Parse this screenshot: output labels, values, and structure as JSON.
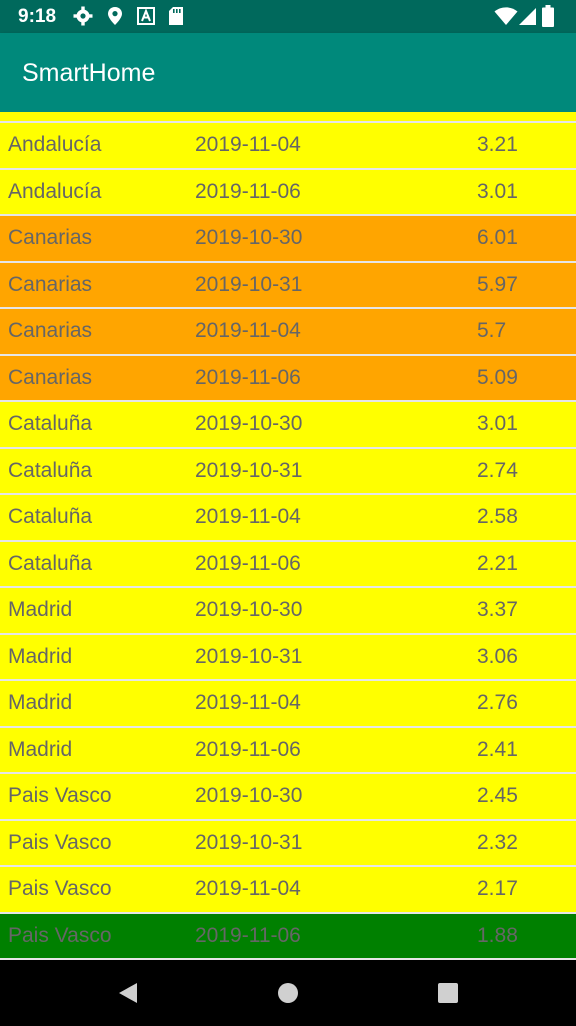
{
  "status": {
    "time": "9:18"
  },
  "app": {
    "title": "SmartHome"
  },
  "rows": [
    {
      "region": "Andalucía",
      "date": "2019-11-04",
      "value": "3.21",
      "color": "yellow"
    },
    {
      "region": "Andalucía",
      "date": "2019-11-06",
      "value": "3.01",
      "color": "yellow"
    },
    {
      "region": "Canarias",
      "date": "2019-10-30",
      "value": "6.01",
      "color": "orange"
    },
    {
      "region": "Canarias",
      "date": "2019-10-31",
      "value": "5.97",
      "color": "orange"
    },
    {
      "region": "Canarias",
      "date": "2019-11-04",
      "value": "5.7",
      "color": "orange"
    },
    {
      "region": "Canarias",
      "date": "2019-11-06",
      "value": "5.09",
      "color": "orange"
    },
    {
      "region": "Cataluña",
      "date": "2019-10-30",
      "value": "3.01",
      "color": "yellow"
    },
    {
      "region": "Cataluña",
      "date": "2019-10-31",
      "value": "2.74",
      "color": "yellow"
    },
    {
      "region": "Cataluña",
      "date": "2019-11-04",
      "value": "2.58",
      "color": "yellow"
    },
    {
      "region": "Cataluña",
      "date": "2019-11-06",
      "value": "2.21",
      "color": "yellow"
    },
    {
      "region": "Madrid",
      "date": "2019-10-30",
      "value": "3.37",
      "color": "yellow"
    },
    {
      "region": "Madrid",
      "date": "2019-10-31",
      "value": "3.06",
      "color": "yellow"
    },
    {
      "region": "Madrid",
      "date": "2019-11-04",
      "value": "2.76",
      "color": "yellow"
    },
    {
      "region": "Madrid",
      "date": "2019-11-06",
      "value": "2.41",
      "color": "yellow"
    },
    {
      "region": "Pais Vasco",
      "date": "2019-10-30",
      "value": "2.45",
      "color": "yellow"
    },
    {
      "region": "Pais Vasco",
      "date": "2019-10-31",
      "value": "2.32",
      "color": "yellow"
    },
    {
      "region": "Pais Vasco",
      "date": "2019-11-04",
      "value": "2.17",
      "color": "yellow"
    },
    {
      "region": "Pais Vasco",
      "date": "2019-11-06",
      "value": "1.88",
      "color": "green"
    }
  ],
  "colors": {
    "yellow": "#ffff00",
    "orange": "#ffa500",
    "green": "#008000",
    "appbar": "#00897b",
    "statusbar": "#00695c"
  },
  "icons": [
    "settings-icon",
    "location-icon",
    "font-icon",
    "sd-card-icon",
    "wifi-icon",
    "signal-icon",
    "battery-icon",
    "back-icon",
    "home-icon",
    "recents-icon"
  ]
}
